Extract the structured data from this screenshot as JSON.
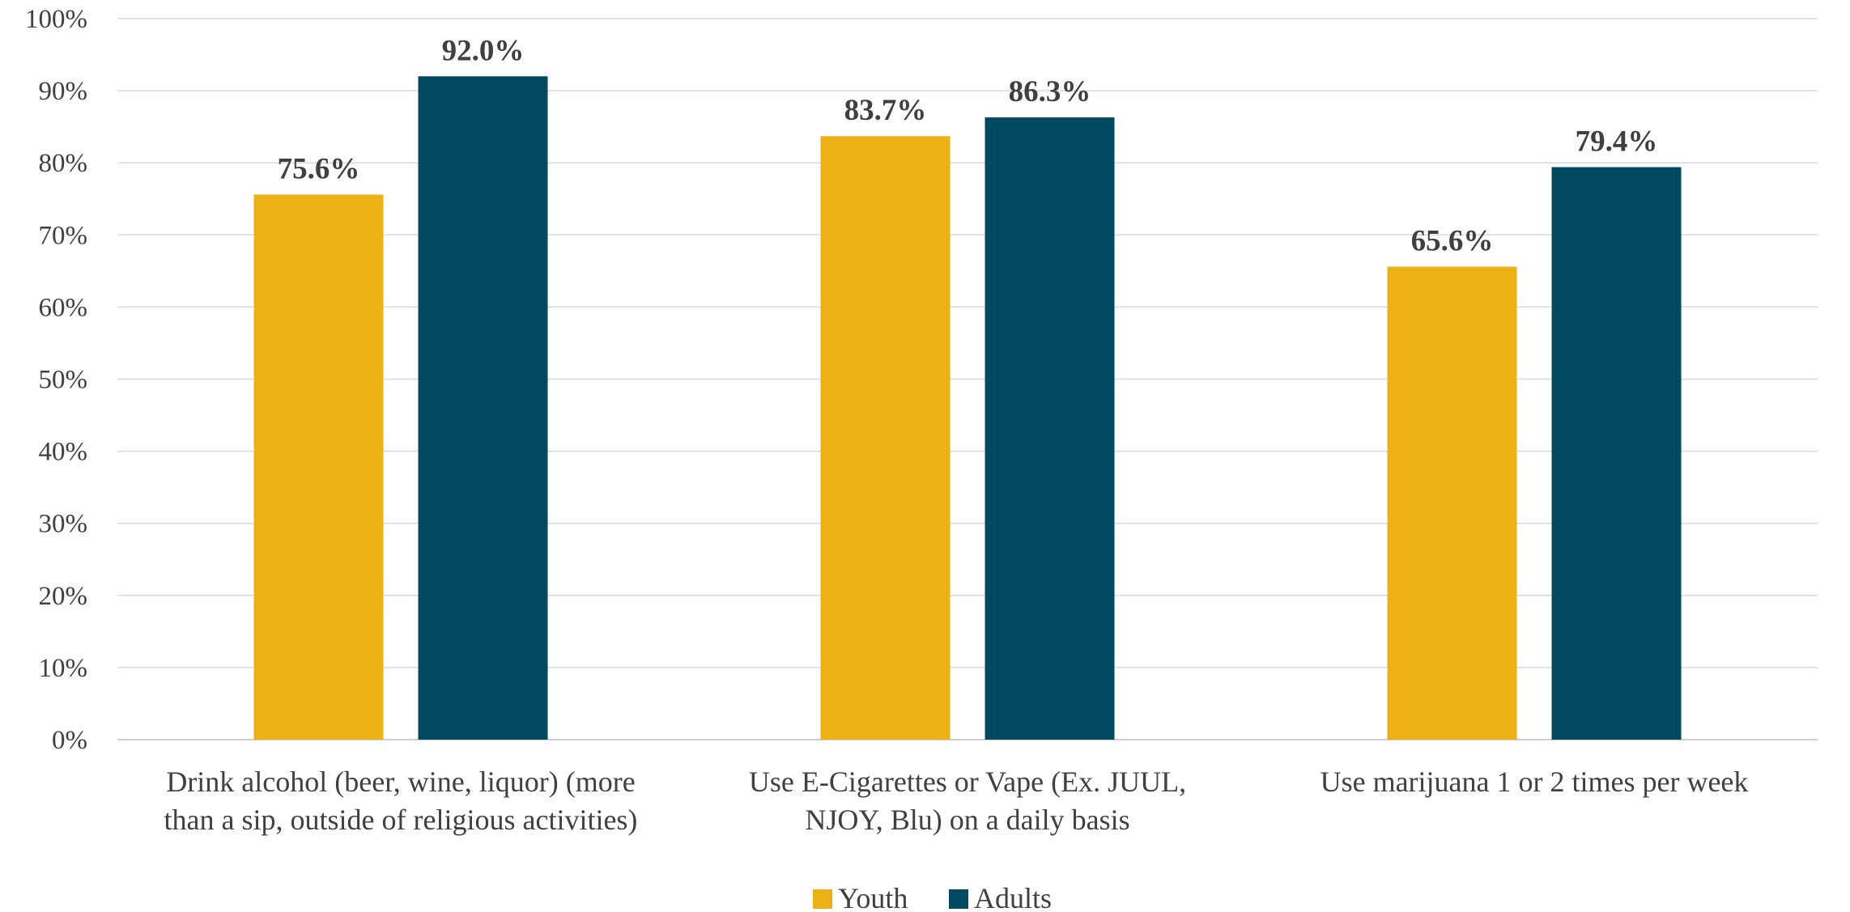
{
  "chart_data": {
    "type": "bar",
    "categories": [
      [
        "Drink alcohol (beer, wine, liquor) (more",
        "than a sip, outside of religious activities)"
      ],
      [
        "Use E-Cigarettes or Vape (Ex. JUUL,",
        "NJOY, Blu) on a daily basis"
      ],
      [
        "Use marijuana 1 or 2 times per week"
      ]
    ],
    "series": [
      {
        "name": "Youth",
        "color": "#EDB118",
        "values": [
          75.6,
          83.7,
          65.6
        ],
        "labels": [
          "75.6%",
          "83.7%",
          "65.6%"
        ]
      },
      {
        "name": "Adults",
        "color": "#004A61",
        "values": [
          92.0,
          86.3,
          79.4
        ],
        "labels": [
          "92.0%",
          "86.3%",
          "79.4%"
        ]
      }
    ],
    "ylim": [
      0,
      100
    ],
    "yticks": [
      0,
      10,
      20,
      30,
      40,
      50,
      60,
      70,
      80,
      90,
      100
    ],
    "ytick_labels": [
      "0%",
      "10%",
      "20%",
      "30%",
      "40%",
      "50%",
      "60%",
      "70%",
      "80%",
      "90%",
      "100%"
    ],
    "grid": true,
    "legend_position": "bottom-center",
    "title": "",
    "xlabel": "",
    "ylabel": ""
  }
}
